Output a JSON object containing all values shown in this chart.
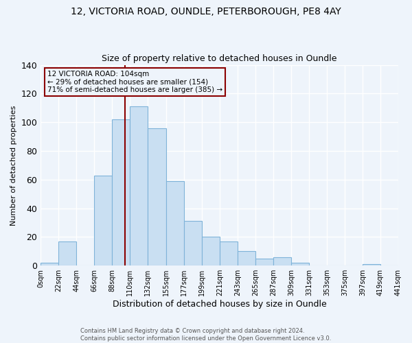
{
  "title_line1": "12, VICTORIA ROAD, OUNDLE, PETERBOROUGH, PE8 4AY",
  "title_line2": "Size of property relative to detached houses in Oundle",
  "xlabel": "Distribution of detached houses by size in Oundle",
  "ylabel": "Number of detached properties",
  "bar_left_edges": [
    0,
    22,
    44,
    66,
    88,
    110,
    132,
    155,
    177,
    199,
    221,
    243,
    265,
    287,
    309,
    331,
    353,
    375,
    397,
    419
  ],
  "bar_widths": [
    22,
    22,
    22,
    22,
    22,
    22,
    23,
    22,
    22,
    22,
    22,
    22,
    22,
    22,
    22,
    22,
    22,
    22,
    22,
    22
  ],
  "bar_heights": [
    2,
    17,
    0,
    63,
    102,
    111,
    96,
    59,
    31,
    20,
    17,
    10,
    5,
    6,
    2,
    0,
    0,
    0,
    1,
    0
  ],
  "bar_color": "#c9dff2",
  "bar_edge_color": "#7fb3d9",
  "vline_x": 104,
  "vline_color": "#8b0000",
  "annotation_text": "12 VICTORIA ROAD: 104sqm\n← 29% of detached houses are smaller (154)\n71% of semi-detached houses are larger (385) →",
  "annotation_box_edge": "#8b0000",
  "xlim": [
    0,
    441
  ],
  "ylim": [
    0,
    140
  ],
  "yticks": [
    0,
    20,
    40,
    60,
    80,
    100,
    120,
    140
  ],
  "xtick_labels": [
    "0sqm",
    "22sqm",
    "44sqm",
    "66sqm",
    "88sqm",
    "110sqm",
    "132sqm",
    "155sqm",
    "177sqm",
    "199sqm",
    "221sqm",
    "243sqm",
    "265sqm",
    "287sqm",
    "309sqm",
    "331sqm",
    "353sqm",
    "375sqm",
    "397sqm",
    "419sqm",
    "441sqm"
  ],
  "xtick_positions": [
    0,
    22,
    44,
    66,
    88,
    110,
    132,
    155,
    177,
    199,
    221,
    243,
    265,
    287,
    309,
    331,
    353,
    375,
    397,
    419,
    441
  ],
  "footer_line1": "Contains HM Land Registry data © Crown copyright and database right 2024.",
  "footer_line2": "Contains public sector information licensed under the Open Government Licence v3.0.",
  "background_color": "#eef4fb",
  "grid_color": "#ffffff",
  "annotation_fontsize": 7.5,
  "title1_fontsize": 10,
  "title2_fontsize": 9,
  "xlabel_fontsize": 9,
  "ylabel_fontsize": 8,
  "ytick_fontsize": 9,
  "xtick_fontsize": 7
}
